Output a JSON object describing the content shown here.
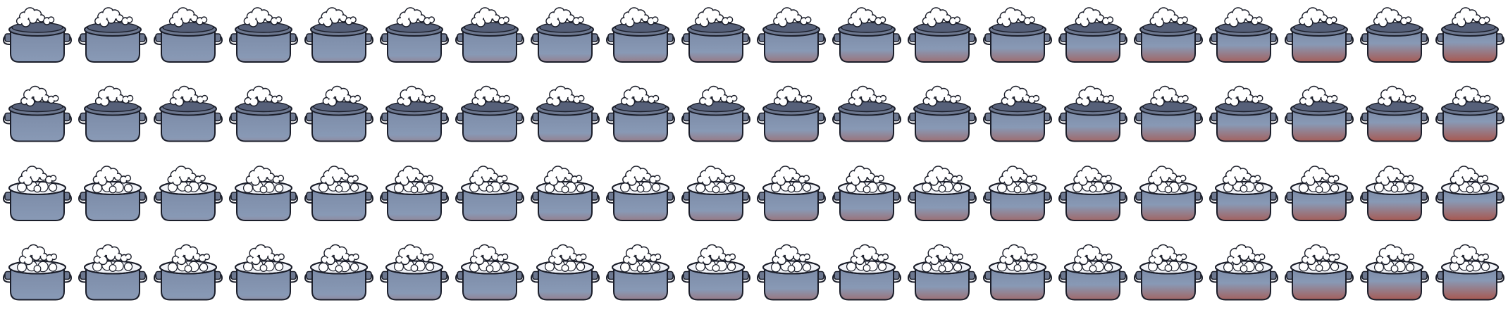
{
  "sprite_sheet": {
    "subject": "boiling pot",
    "columns": 20,
    "rows": [
      {
        "lid": "closed",
        "steam_variant": "a"
      },
      {
        "lid": "closed",
        "steam_variant": "b"
      },
      {
        "lid": "open",
        "steam_variant": "a"
      },
      {
        "lid": "open",
        "steam_variant": "b"
      }
    ],
    "heat_levels": [
      0.0,
      0.05,
      0.1,
      0.16,
      0.21,
      0.26,
      0.32,
      0.37,
      0.42,
      0.47,
      0.53,
      0.58,
      0.63,
      0.68,
      0.74,
      0.79,
      0.84,
      0.89,
      0.95,
      1.0
    ],
    "colors": {
      "pot_top": "#7b8aa6",
      "pot_mid": "#8899b5",
      "pot_hot": "#a85850",
      "lid": "#6d7890",
      "lid_dark": "#566079",
      "outline": "#1b1e2a",
      "steam": "#ffffff",
      "water": "#f1f3f8"
    }
  }
}
